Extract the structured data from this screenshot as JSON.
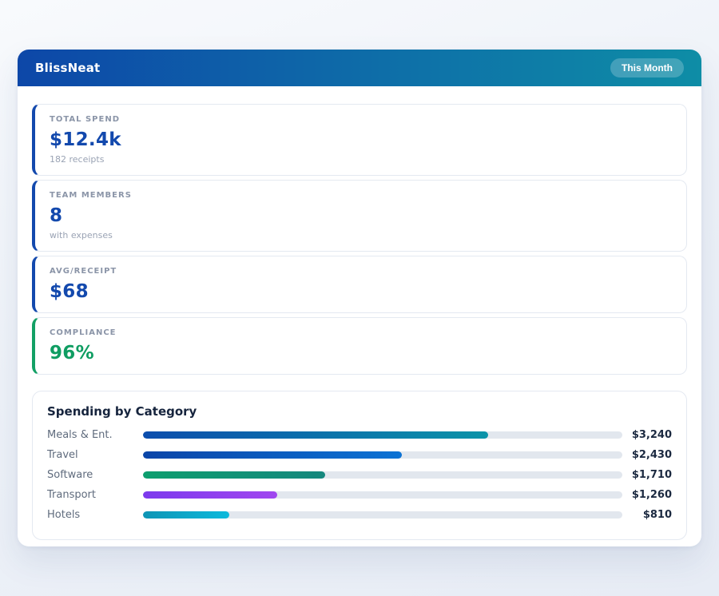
{
  "app": {
    "title": "BlissNeat",
    "period_badge": "This Month"
  },
  "theme": {
    "header_gradient_start": "#0d47a8",
    "header_gradient_end": "#0e8da6",
    "stat_accent_blue": "#1349ad",
    "stat_accent_green": "#12a065",
    "stat_value_blue": "#1349ad",
    "stat_value_green": "#0f9d62",
    "bar_track": "#e2e7ee",
    "page_background": "#eef2f8",
    "card_border": "#e4e9f1"
  },
  "stats": [
    {
      "label": "TOTAL SPEND",
      "value": "$12.4k",
      "sub": "182 receipts",
      "accent": "blue"
    },
    {
      "label": "TEAM MEMBERS",
      "value": "8",
      "sub": "with expenses",
      "accent": "blue"
    },
    {
      "label": "AVG/RECEIPT",
      "value": "$68",
      "sub": "",
      "accent": "blue"
    },
    {
      "label": "COMPLIANCE",
      "value": "96%",
      "sub": "",
      "accent": "green"
    }
  ],
  "chart_data": {
    "type": "bar",
    "orientation": "horizontal",
    "title": "Spending by Category",
    "categories": [
      "Meals & Ent.",
      "Travel",
      "Software",
      "Transport",
      "Hotels"
    ],
    "values": [
      3240,
      2430,
      1710,
      1260,
      810
    ],
    "value_labels": [
      "$3,240",
      "$2,430",
      "$1,710",
      "$1,260",
      "$810"
    ],
    "xlim": [
      0,
      4500
    ],
    "grid": false,
    "legend": false,
    "bar_gradients": [
      [
        "#0b4dad",
        "#0a93a8"
      ],
      [
        "#0a45a8",
        "#0b72d4"
      ],
      [
        "#0d9e6e",
        "#15877e"
      ],
      [
        "#7c3aed",
        "#a046ef"
      ],
      [
        "#0e95b5",
        "#0cb9dc"
      ]
    ]
  }
}
